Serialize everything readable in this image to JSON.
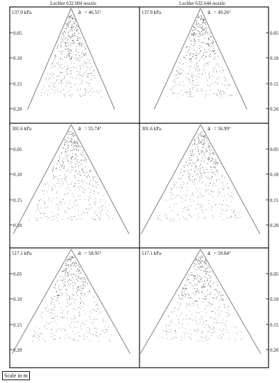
{
  "figure": {
    "column_titles": [
      "Lechler 632.604 nozzle",
      "Lechler 632.644 nozzle"
    ],
    "y_tick_labels": [
      "0.05",
      "0.10",
      "0.15",
      "0.20"
    ],
    "scale_label": "Scale in m",
    "alpha_symbol": "a",
    "panels": [
      {
        "pressure": "137.9 kPa",
        "angle_text": "= 46.55°",
        "angle_deg": 46.55
      },
      {
        "pressure": "137.9 kPa",
        "angle_text": "= 49.26°",
        "angle_deg": 49.26
      },
      {
        "pressure": "301.6 kPa",
        "angle_text": "= 55.74°",
        "angle_deg": 55.74
      },
      {
        "pressure": "301.6 kPa",
        "angle_text": "= 56.99°",
        "angle_deg": 56.99
      },
      {
        "pressure": "517.1 kPa",
        "angle_text": "= 58.95°",
        "angle_deg": 58.95
      },
      {
        "pressure": "517.1 kPa",
        "angle_text": "= 59.84°",
        "angle_deg": 59.84
      }
    ]
  }
}
